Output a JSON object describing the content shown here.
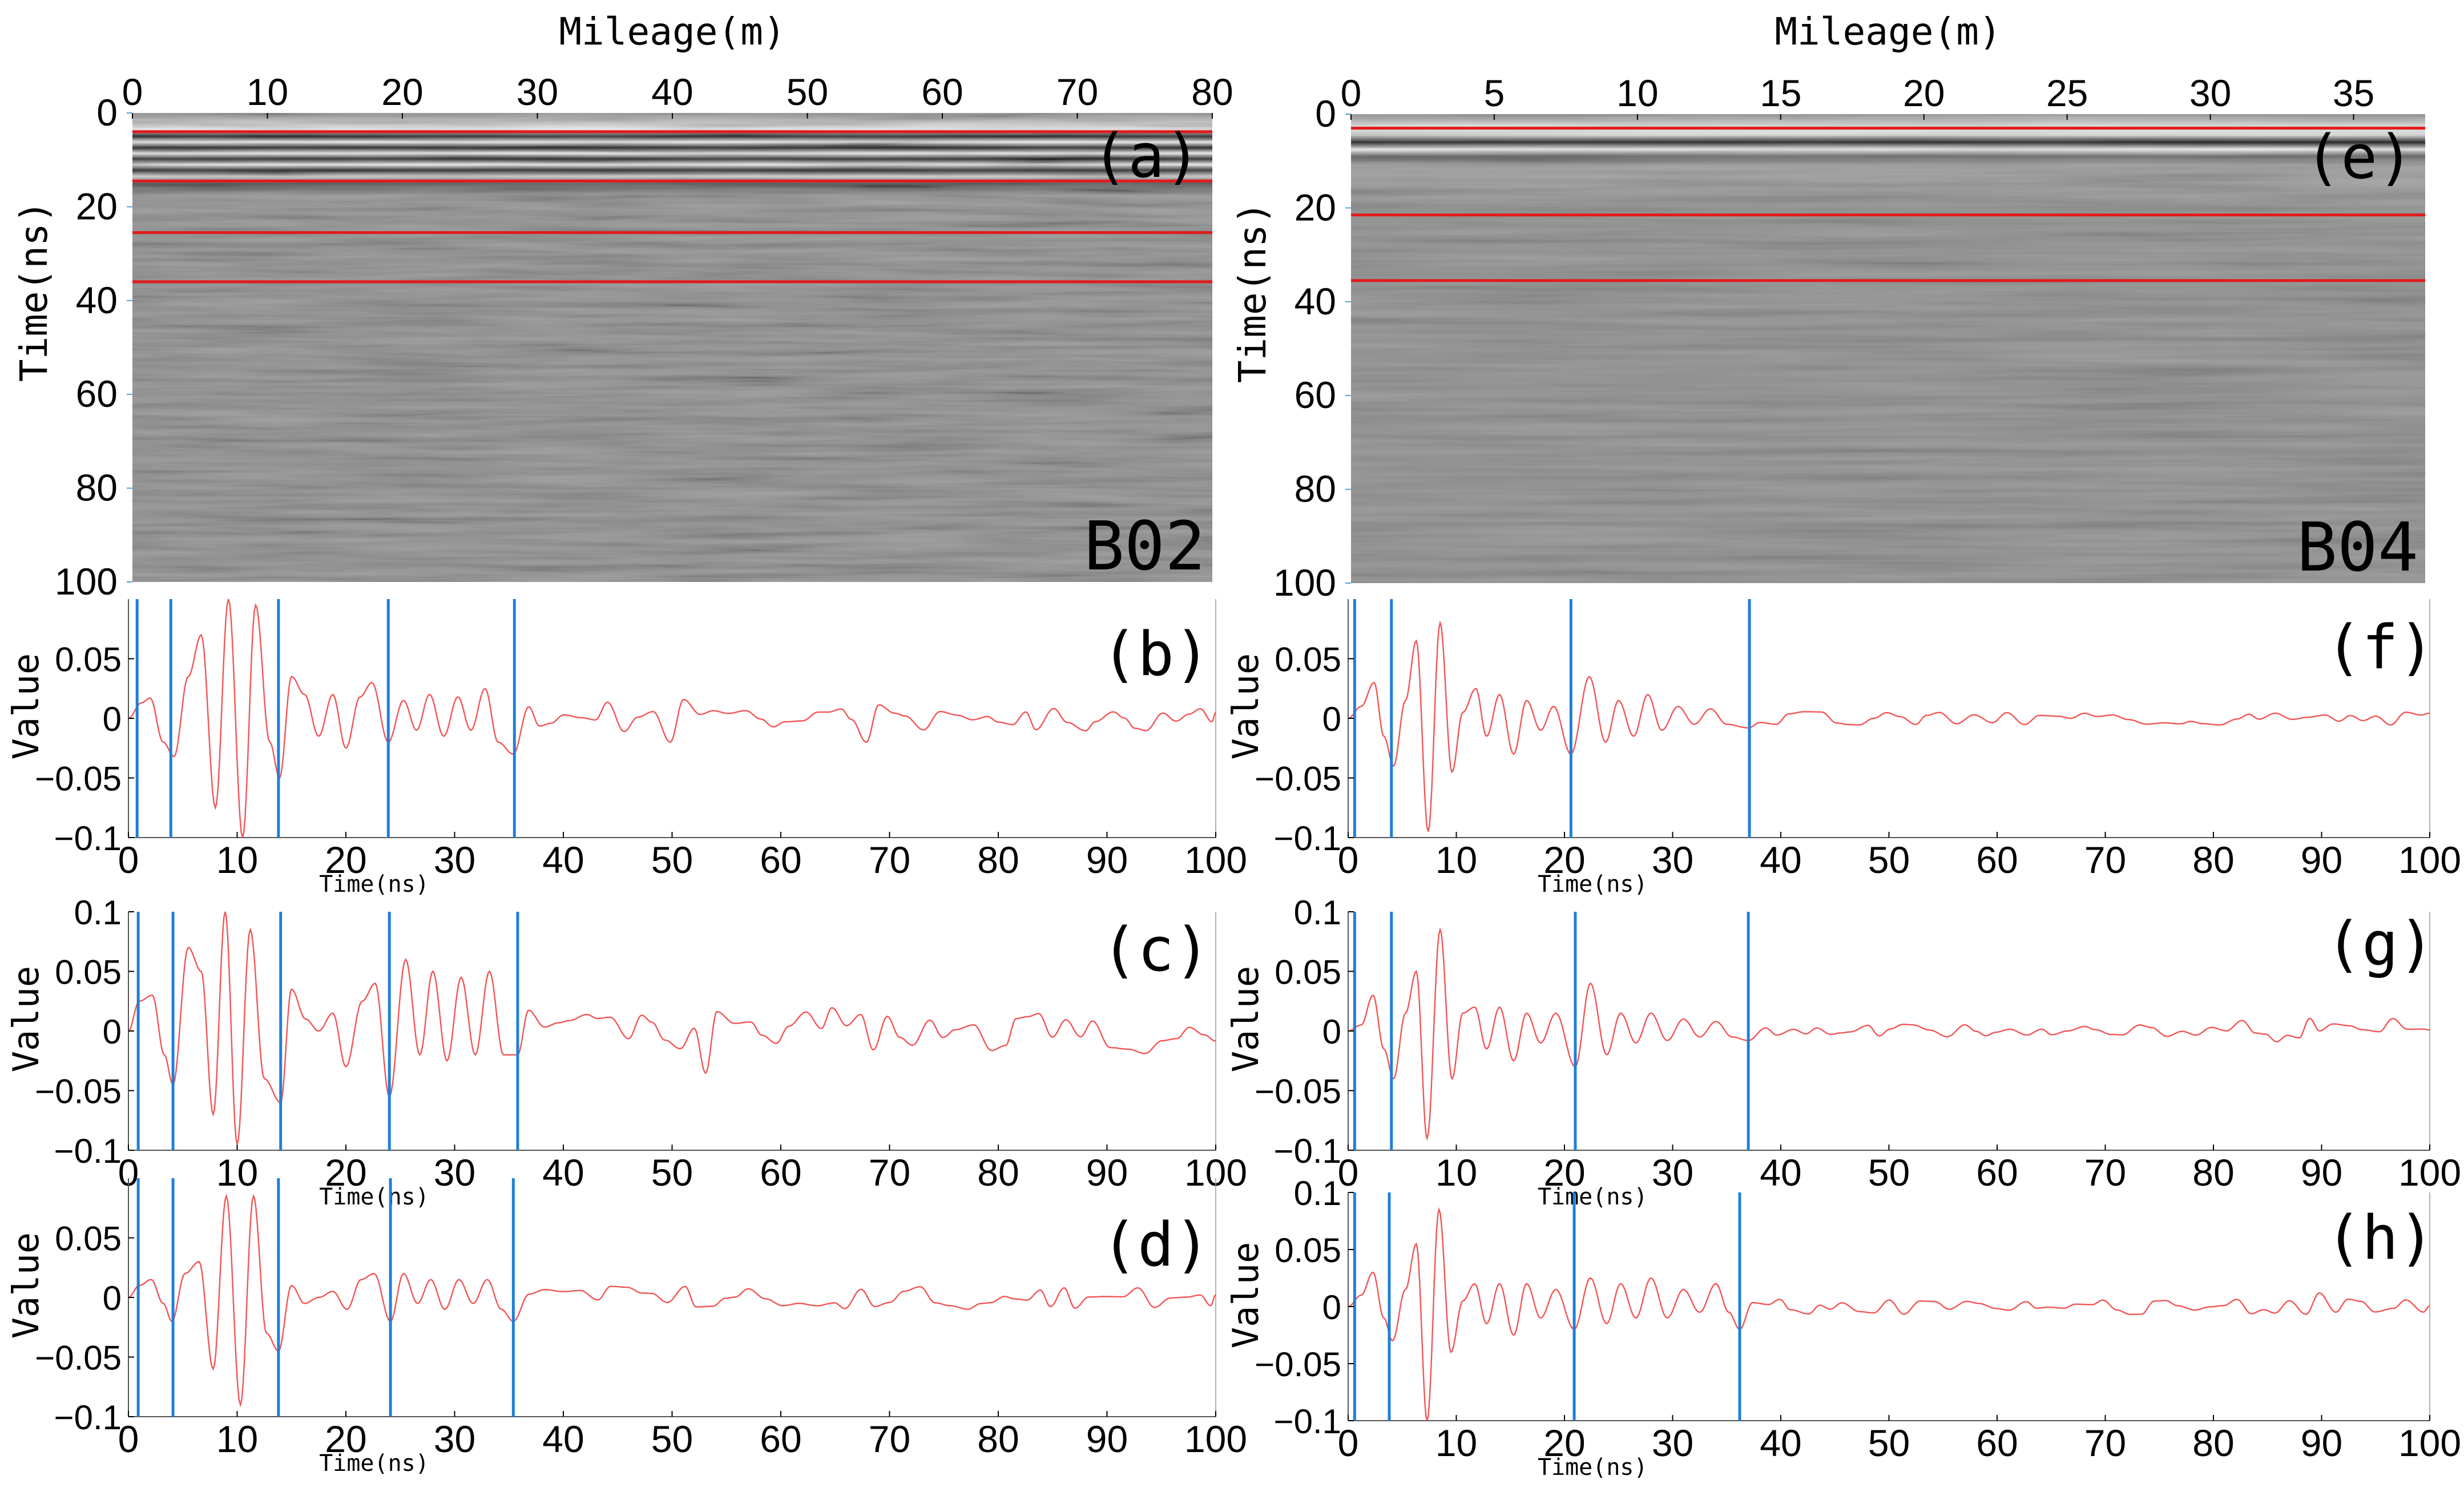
{
  "colors": {
    "trace": "#f25555",
    "marker": "#1f7fd8",
    "horizon": "#e11b1b",
    "axis": "#000000"
  },
  "chart_data": [
    {
      "id": "a",
      "type": "heatmap",
      "panel_label": "(a)",
      "profile_label": "B02",
      "xlabel": "Mileage(m)",
      "ylabel": "Time(ns)",
      "xlim": [
        0,
        80
      ],
      "ylim": [
        0,
        100
      ],
      "xticks": [
        0,
        10,
        20,
        30,
        40,
        50,
        60,
        70,
        80
      ],
      "yticks": [
        0,
        20,
        40,
        60,
        80,
        100
      ],
      "horizons_ns": [
        4,
        14.5,
        25.5,
        36
      ]
    },
    {
      "id": "b",
      "type": "line",
      "panel_label": "(b)",
      "xlabel": "Time(ns)",
      "ylabel": "Value",
      "xlim": [
        0,
        100
      ],
      "ylim": [
        -0.1,
        0.1
      ],
      "xticks": [
        0,
        10,
        20,
        30,
        40,
        50,
        60,
        70,
        80,
        90,
        100
      ],
      "ytick_values": [
        -0.1,
        -0.05,
        0,
        0.05
      ],
      "ytick_labels": [
        "−0.1",
        "−0.05",
        "0",
        "0.05"
      ],
      "markers_ns": [
        0.8,
        3.9,
        13.8,
        23.9,
        35.5
      ],
      "series": [
        {
          "name": "trace",
          "peaks": [
            [
              1.2,
              0.013
            ],
            [
              2.0,
              0.017
            ],
            [
              3.2,
              -0.02
            ],
            [
              4.2,
              -0.032
            ],
            [
              5.5,
              0.035
            ],
            [
              6.7,
              0.07
            ],
            [
              8.0,
              -0.075
            ],
            [
              9.2,
              0.1
            ],
            [
              10.5,
              -0.1
            ],
            [
              11.7,
              0.095
            ],
            [
              13.0,
              -0.02
            ],
            [
              13.9,
              -0.05
            ],
            [
              15.0,
              0.035
            ],
            [
              16.2,
              0.02
            ],
            [
              17.5,
              -0.015
            ],
            [
              18.8,
              0.02
            ],
            [
              20.0,
              -0.025
            ],
            [
              21.3,
              0.018
            ],
            [
              22.4,
              0.03
            ],
            [
              23.9,
              -0.02
            ],
            [
              25.3,
              0.015
            ],
            [
              26.5,
              -0.01
            ],
            [
              27.7,
              0.02
            ],
            [
              29.0,
              -0.015
            ],
            [
              30.3,
              0.018
            ],
            [
              31.5,
              -0.01
            ],
            [
              32.8,
              0.025
            ],
            [
              34.0,
              -0.02
            ],
            [
              35.4,
              -0.03
            ]
          ],
          "noise": 0.012,
          "seed": 11
        }
      ]
    },
    {
      "id": "c",
      "type": "line",
      "panel_label": "(c)",
      "xlabel": "Time(ns)",
      "ylabel": "Value",
      "xlim": [
        0,
        100
      ],
      "ylim": [
        -0.1,
        0.1
      ],
      "xticks": [
        0,
        10,
        20,
        30,
        40,
        50,
        60,
        70,
        80,
        90,
        100
      ],
      "ytick_values": [
        -0.1,
        -0.05,
        0,
        0.05,
        0.1
      ],
      "ytick_labels": [
        "−0.1",
        "−0.05",
        "0",
        "0.05",
        "0.1"
      ],
      "markers_ns": [
        0.9,
        4.1,
        14.0,
        24.0,
        35.8
      ],
      "series": [
        {
          "name": "trace",
          "peaks": [
            [
              1.0,
              0.025
            ],
            [
              2.2,
              0.03
            ],
            [
              3.3,
              -0.02
            ],
            [
              4.1,
              -0.045
            ],
            [
              5.5,
              0.07
            ],
            [
              6.7,
              0.05
            ],
            [
              7.8,
              -0.07
            ],
            [
              8.9,
              0.1
            ],
            [
              10.0,
              -0.095
            ],
            [
              11.2,
              0.085
            ],
            [
              12.5,
              -0.04
            ],
            [
              14.0,
              -0.06
            ],
            [
              15.0,
              0.035
            ],
            [
              16.3,
              0.01
            ],
            [
              17.5,
              0.0
            ],
            [
              18.8,
              0.015
            ],
            [
              20.0,
              -0.03
            ],
            [
              21.5,
              0.025
            ],
            [
              22.7,
              0.04
            ],
            [
              24.0,
              -0.055
            ],
            [
              25.5,
              0.06
            ],
            [
              26.8,
              -0.02
            ],
            [
              28.0,
              0.05
            ],
            [
              29.3,
              -0.025
            ],
            [
              30.6,
              0.045
            ],
            [
              31.9,
              -0.02
            ],
            [
              33.2,
              0.05
            ],
            [
              34.5,
              -0.02
            ],
            [
              35.8,
              -0.02
            ]
          ],
          "noise": 0.02,
          "seed": 23
        }
      ]
    },
    {
      "id": "d",
      "type": "line",
      "panel_label": "(d)",
      "xlabel": "Time(ns)",
      "ylabel": "Value",
      "xlim": [
        0,
        100
      ],
      "ylim": [
        -0.1,
        0.1
      ],
      "xticks": [
        0,
        10,
        20,
        30,
        40,
        50,
        60,
        70,
        80,
        90,
        100
      ],
      "ytick_values": [
        -0.1,
        -0.05,
        0,
        0.05
      ],
      "ytick_labels": [
        "−0.1",
        "−0.05",
        "0",
        "0.05"
      ],
      "markers_ns": [
        0.9,
        4.1,
        13.8,
        24.1,
        35.4
      ],
      "series": [
        {
          "name": "trace",
          "peaks": [
            [
              1.0,
              0.01
            ],
            [
              2.1,
              0.015
            ],
            [
              3.2,
              -0.005
            ],
            [
              4.0,
              -0.02
            ],
            [
              5.2,
              0.02
            ],
            [
              6.5,
              0.03
            ],
            [
              7.8,
              -0.06
            ],
            [
              9.0,
              0.085
            ],
            [
              10.3,
              -0.09
            ],
            [
              11.5,
              0.085
            ],
            [
              12.7,
              -0.03
            ],
            [
              13.8,
              -0.045
            ],
            [
              15.0,
              0.01
            ],
            [
              16.2,
              -0.005
            ],
            [
              17.5,
              0.0
            ],
            [
              18.8,
              0.005
            ],
            [
              20.1,
              -0.01
            ],
            [
              21.4,
              0.015
            ],
            [
              22.6,
              0.02
            ],
            [
              24.1,
              -0.02
            ],
            [
              25.3,
              0.02
            ],
            [
              26.6,
              -0.005
            ],
            [
              27.8,
              0.015
            ],
            [
              29.1,
              -0.01
            ],
            [
              30.4,
              0.015
            ],
            [
              31.7,
              -0.005
            ],
            [
              33.0,
              0.015
            ],
            [
              34.3,
              -0.01
            ],
            [
              35.4,
              -0.02
            ]
          ],
          "noise": 0.01,
          "seed": 37
        }
      ]
    },
    {
      "id": "e",
      "type": "heatmap",
      "panel_label": "(e)",
      "profile_label": "B04",
      "xlabel": "Mileage(m)",
      "ylabel": "Time(ns)",
      "xlim": [
        0,
        37.5
      ],
      "ylim": [
        0,
        100
      ],
      "xticks": [
        0,
        5,
        10,
        15,
        20,
        25,
        30,
        35
      ],
      "yticks": [
        0,
        20,
        40,
        60,
        80,
        100
      ],
      "horizons_ns": [
        3,
        21.5,
        35.5
      ]
    },
    {
      "id": "f",
      "type": "line",
      "panel_label": "(f)",
      "xlabel": "Time(ns)",
      "ylabel": "Value",
      "xlim": [
        0,
        100
      ],
      "ylim": [
        -0.1,
        0.1
      ],
      "xticks": [
        0,
        10,
        20,
        30,
        40,
        50,
        60,
        70,
        80,
        90,
        100
      ],
      "ytick_values": [
        -0.1,
        -0.05,
        0,
        0.05
      ],
      "ytick_labels": [
        "−0.1",
        "−0.05",
        "0",
        "0.05"
      ],
      "markers_ns": [
        0.6,
        4.0,
        20.6,
        37.1
      ],
      "series": [
        {
          "name": "trace",
          "peaks": [
            [
              1.2,
              0.01
            ],
            [
              2.4,
              0.03
            ],
            [
              3.3,
              -0.015
            ],
            [
              4.2,
              -0.04
            ],
            [
              5.3,
              0.015
            ],
            [
              6.3,
              0.065
            ],
            [
              7.4,
              -0.095
            ],
            [
              8.5,
              0.08
            ],
            [
              9.6,
              -0.045
            ],
            [
              10.6,
              0.005
            ],
            [
              11.8,
              0.025
            ],
            [
              12.8,
              -0.015
            ],
            [
              14.0,
              0.02
            ],
            [
              15.3,
              -0.03
            ],
            [
              16.5,
              0.015
            ],
            [
              17.8,
              -0.01
            ],
            [
              19.0,
              0.01
            ],
            [
              20.6,
              -0.03
            ],
            [
              22.3,
              0.035
            ],
            [
              23.8,
              -0.02
            ],
            [
              25.0,
              0.015
            ],
            [
              26.4,
              -0.015
            ],
            [
              27.7,
              0.02
            ],
            [
              29.0,
              -0.01
            ],
            [
              30.5,
              0.01
            ],
            [
              32.0,
              -0.005
            ],
            [
              33.5,
              0.008
            ],
            [
              35.0,
              -0.005
            ],
            [
              37.0,
              -0.008
            ]
          ],
          "noise": 0.006,
          "seed": 51
        }
      ]
    },
    {
      "id": "g",
      "type": "line",
      "panel_label": "(g)",
      "xlabel": "Time(ns)",
      "ylabel": "Value",
      "xlim": [
        0,
        100
      ],
      "ylim": [
        -0.1,
        0.1
      ],
      "xticks": [
        0,
        10,
        20,
        30,
        40,
        50,
        60,
        70,
        80,
        90,
        100
      ],
      "ytick_values": [
        -0.1,
        -0.05,
        0,
        0.05,
        0.1
      ],
      "ytick_labels": [
        "−0.1",
        "−0.05",
        "0",
        "0.05",
        "0.1"
      ],
      "markers_ns": [
        0.6,
        4.0,
        21.0,
        37.0
      ],
      "series": [
        {
          "name": "trace",
          "peaks": [
            [
              1.2,
              0.005
            ],
            [
              2.3,
              0.03
            ],
            [
              3.3,
              -0.015
            ],
            [
              4.2,
              -0.04
            ],
            [
              5.3,
              0.015
            ],
            [
              6.3,
              0.05
            ],
            [
              7.3,
              -0.09
            ],
            [
              8.5,
              0.085
            ],
            [
              9.6,
              -0.04
            ],
            [
              10.6,
              0.015
            ],
            [
              11.7,
              0.02
            ],
            [
              12.8,
              -0.015
            ],
            [
              14.0,
              0.02
            ],
            [
              15.3,
              -0.025
            ],
            [
              16.5,
              0.015
            ],
            [
              17.8,
              -0.01
            ],
            [
              19.2,
              0.015
            ],
            [
              21.0,
              -0.03
            ],
            [
              22.4,
              0.04
            ],
            [
              23.9,
              -0.02
            ],
            [
              25.2,
              0.015
            ],
            [
              26.6,
              -0.01
            ],
            [
              28.0,
              0.015
            ],
            [
              29.5,
              -0.008
            ],
            [
              31.0,
              0.01
            ],
            [
              32.5,
              -0.005
            ],
            [
              34.0,
              0.008
            ],
            [
              35.5,
              -0.005
            ],
            [
              37.0,
              -0.008
            ]
          ],
          "noise": 0.006,
          "seed": 67
        }
      ]
    },
    {
      "id": "h",
      "type": "line",
      "panel_label": "(h)",
      "xlabel": "Time(ns)",
      "ylabel": "Value",
      "xlim": [
        0,
        100
      ],
      "ylim": [
        -0.1,
        0.1
      ],
      "xticks": [
        0,
        10,
        20,
        30,
        40,
        50,
        60,
        70,
        80,
        90,
        100
      ],
      "ytick_values": [
        -0.1,
        -0.05,
        0,
        0.05,
        0.1
      ],
      "ytick_labels": [
        "−0.1",
        "−0.05",
        "0",
        "0.05",
        "0.1"
      ],
      "markers_ns": [
        0.6,
        3.8,
        20.9,
        36.2
      ],
      "series": [
        {
          "name": "trace",
          "peaks": [
            [
              1.2,
              0.01
            ],
            [
              2.3,
              0.03
            ],
            [
              3.3,
              -0.01
            ],
            [
              4.1,
              -0.03
            ],
            [
              5.3,
              0.015
            ],
            [
              6.3,
              0.055
            ],
            [
              7.3,
              -0.1
            ],
            [
              8.4,
              0.085
            ],
            [
              9.5,
              -0.04
            ],
            [
              10.6,
              0.005
            ],
            [
              11.7,
              0.02
            ],
            [
              12.8,
              -0.015
            ],
            [
              14.0,
              0.02
            ],
            [
              15.3,
              -0.025
            ],
            [
              16.5,
              0.02
            ],
            [
              17.8,
              -0.01
            ],
            [
              19.2,
              0.015
            ],
            [
              20.9,
              -0.02
            ],
            [
              22.4,
              0.025
            ],
            [
              23.9,
              -0.015
            ],
            [
              25.2,
              0.02
            ],
            [
              26.6,
              -0.01
            ],
            [
              28.0,
              0.025
            ],
            [
              29.5,
              -0.01
            ],
            [
              31.0,
              0.015
            ],
            [
              32.5,
              -0.005
            ],
            [
              34.0,
              0.02
            ],
            [
              35.2,
              -0.005
            ],
            [
              36.2,
              -0.02
            ]
          ],
          "noise": 0.007,
          "seed": 79
        }
      ]
    }
  ]
}
